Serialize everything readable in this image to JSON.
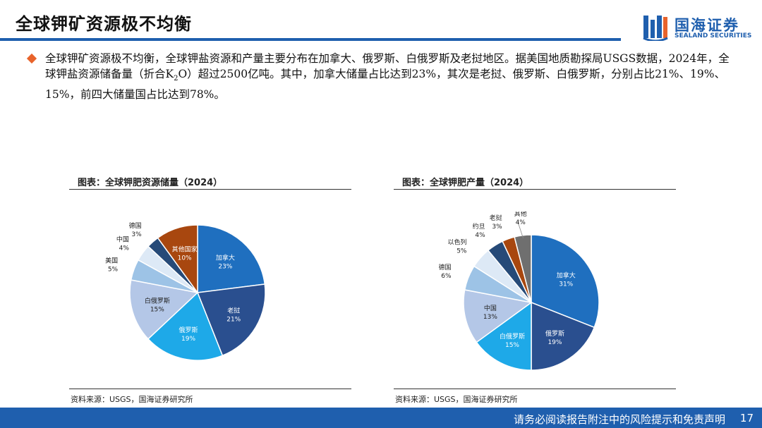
{
  "header": {
    "title": "全球钾矿资源极不均衡",
    "logo_cn": "国海证券",
    "logo_en": "SEALAND SECURITIES"
  },
  "bullet": {
    "text_before_sub": "全球钾矿资源极不均衡，全球钾盐资源和产量主要分布在加拿大、俄罗斯、白俄罗斯及老挝地区。据美国地质勘探局USGS数据，2024年，全球钾盐资源储备量（折合K",
    "subscript": "2",
    "text_after_sub": "O）超过2500亿吨。其中，加拿大储量占比达到23%，其次是老挝、俄罗斯、白俄罗斯，分别占比21%、19%、15%，前四大储量国占比达到78%。"
  },
  "charts": [
    {
      "title": "图表：全球钾肥资源储量（2024）",
      "source": "资料来源：USGS，国海证券研究所"
    },
    {
      "title": "图表：全球钾肥产量（2024）",
      "source": "资料来源：USGS，国海证券研究所"
    }
  ],
  "chart_data": [
    {
      "type": "pie",
      "title": "图表：全球钾肥资源储量（2024）",
      "slices": [
        {
          "label": "加拿大",
          "value": 23,
          "value_label": "23%",
          "color": "#1f6fbf"
        },
        {
          "label": "老挝",
          "value": 21,
          "value_label": "21%",
          "color": "#2a4f8f"
        },
        {
          "label": "俄罗斯",
          "value": 19,
          "value_label": "19%",
          "color": "#1ea9e8"
        },
        {
          "label": "白俄罗斯",
          "value": 15,
          "value_label": "15%",
          "color": "#b4c7e7"
        },
        {
          "label": "美国",
          "value": 5,
          "value_label": "5%",
          "color": "#9dc3e6"
        },
        {
          "label": "中国",
          "value": 4,
          "value_label": "4%",
          "color": "#dde9f6"
        },
        {
          "label": "德国",
          "value": 3,
          "value_label": "3%",
          "color": "#264a78"
        },
        {
          "label": "其他国家",
          "value": 10,
          "value_label": "10%",
          "color": "#a8470f"
        }
      ]
    },
    {
      "type": "pie",
      "title": "图表：全球钾肥产量（2024）",
      "slices": [
        {
          "label": "加拿大",
          "value": 31,
          "value_label": "31%",
          "color": "#1f6fbf"
        },
        {
          "label": "俄罗斯",
          "value": 19,
          "value_label": "19%",
          "color": "#2a4f8f"
        },
        {
          "label": "白俄罗斯",
          "value": 15,
          "value_label": "15%",
          "color": "#1ea9e8"
        },
        {
          "label": "中国",
          "value": 13,
          "value_label": "13%",
          "color": "#b4c7e7"
        },
        {
          "label": "德国",
          "value": 6,
          "value_label": "6%",
          "color": "#9dc3e6"
        },
        {
          "label": "以色列",
          "value": 5,
          "value_label": "5%",
          "color": "#dde9f6"
        },
        {
          "label": "约旦",
          "value": 4,
          "value_label": "4%",
          "color": "#264a78"
        },
        {
          "label": "老挝",
          "value": 3,
          "value_label": "3%",
          "color": "#a8470f"
        },
        {
          "label": "其他",
          "value": 4,
          "value_label": "4%",
          "color": "#6f6f6f"
        }
      ]
    }
  ],
  "footer": {
    "disclaimer": "请务必阅读报告附注中的风险提示和免责声明",
    "page_number": "17"
  }
}
